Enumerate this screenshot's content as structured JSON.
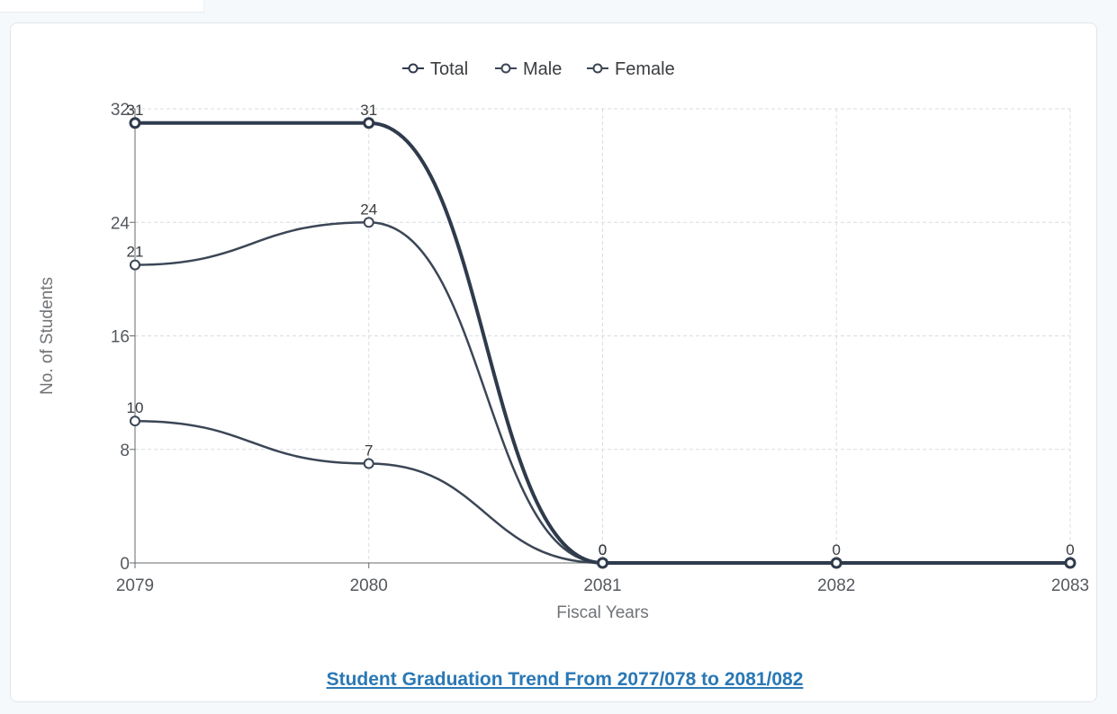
{
  "caption": "Student Graduation Trend From 2077/078 to 2081/082",
  "chart_data": {
    "type": "line",
    "categories": [
      "2079",
      "2080",
      "2081",
      "2082",
      "2083"
    ],
    "series": [
      {
        "name": "Total",
        "values": [
          31,
          31,
          0,
          0,
          0
        ],
        "color": "#2f3b4c",
        "width": 4
      },
      {
        "name": "Male",
        "values": [
          21,
          24,
          0,
          null,
          null
        ],
        "color": "#3b4656",
        "width": 2.5
      },
      {
        "name": "Female",
        "values": [
          10,
          7,
          0,
          null,
          null
        ],
        "color": "#3b4656",
        "width": 2.5
      }
    ],
    "xlabel": "Fiscal Years",
    "ylabel": "No. of Students",
    "ylim": [
      0,
      32
    ],
    "yticks": [
      "0",
      "8",
      "16",
      "24",
      "32"
    ],
    "grid": true,
    "legend": "top-center",
    "data_labels": true,
    "smooth": true
  }
}
